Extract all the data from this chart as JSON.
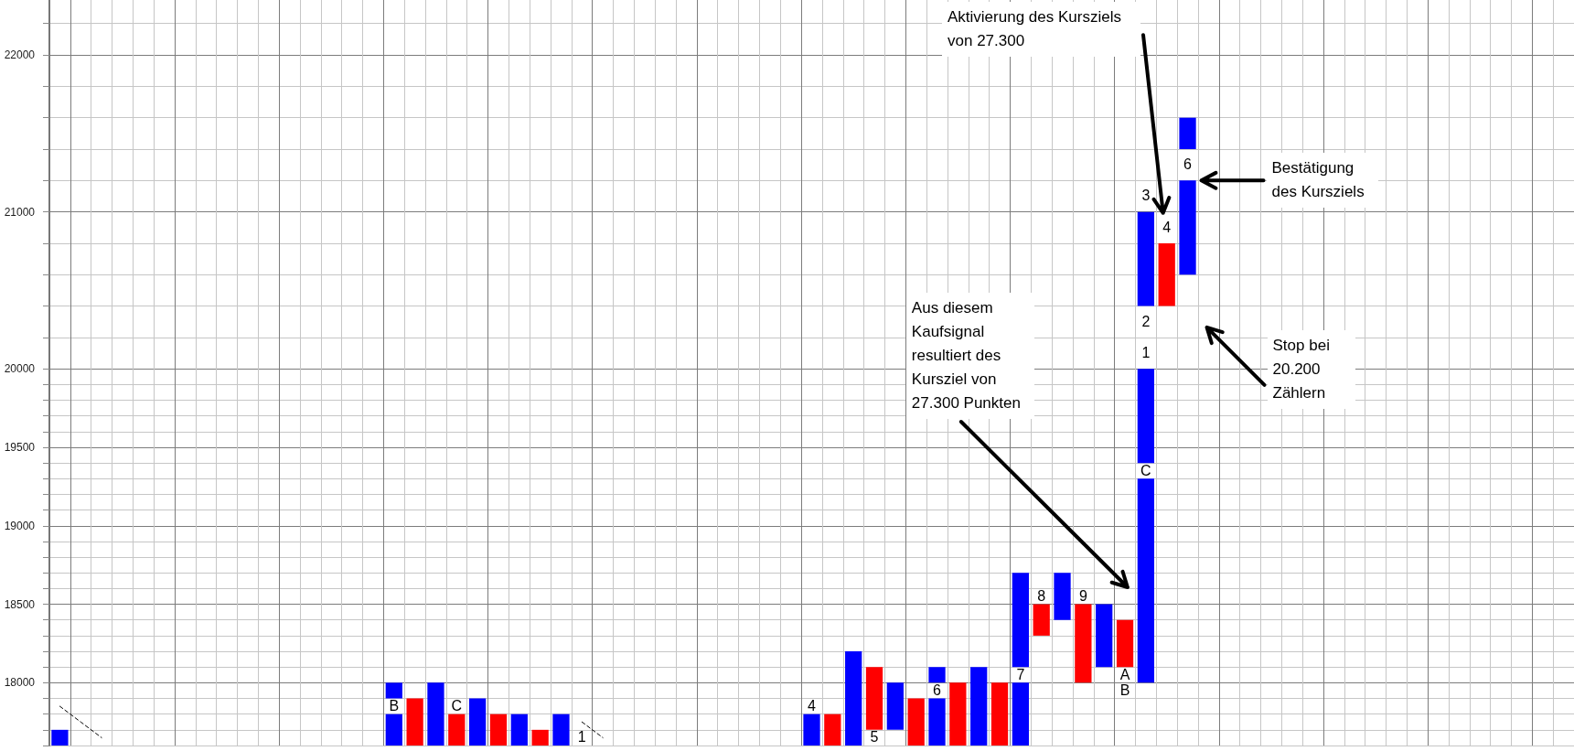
{
  "chart_data": {
    "type": "bar",
    "categories": [
      null,
      null,
      null,
      null,
      null,
      null,
      null,
      null,
      null,
      null,
      null,
      null,
      null,
      null,
      null,
      null,
      null,
      null,
      null,
      null,
      null,
      null,
      null,
      null,
      null,
      null,
      null,
      null,
      null,
      null,
      null,
      null,
      null,
      null,
      null,
      null,
      null,
      null,
      null,
      null,
      null,
      null,
      null,
      null,
      null,
      null,
      null,
      null,
      null,
      null,
      null,
      null,
      null,
      null,
      null,
      null,
      null,
      null,
      null,
      null,
      null,
      null,
      null,
      null,
      null,
      null,
      null,
      null,
      null,
      null,
      null,
      null,
      null
    ],
    "ylim": [
      17600,
      22350
    ],
    "yticks": [
      {
        "value": 17600,
        "label": null
      },
      {
        "value": 17700,
        "label": null
      },
      {
        "value": 17800,
        "label": null
      },
      {
        "value": 17900,
        "label": null
      },
      18000,
      {
        "value": 18100,
        "label": null
      },
      {
        "value": 18200,
        "label": null
      },
      {
        "value": 18300,
        "label": null
      },
      {
        "value": 18400,
        "label": null
      },
      18500,
      {
        "value": 18600,
        "label": null
      },
      {
        "value": 18700,
        "label": null
      },
      {
        "value": 18800,
        "label": null
      },
      {
        "value": 18900,
        "label": null
      },
      19000,
      {
        "value": 19100,
        "label": null
      },
      {
        "value": 19200,
        "label": null
      },
      {
        "value": 19300,
        "label": null
      },
      {
        "value": 19400,
        "label": null
      },
      19500,
      {
        "value": 19600,
        "label": null
      },
      {
        "value": 19700,
        "label": null
      },
      {
        "value": 19800,
        "label": null
      },
      {
        "value": 19900,
        "label": null
      },
      20000,
      {
        "value": 20200,
        "label": null
      },
      {
        "value": 20400,
        "label": null
      },
      {
        "value": 20600,
        "label": null
      },
      {
        "value": 20800,
        "label": null
      },
      21000,
      {
        "value": 21200,
        "label": null
      },
      {
        "value": 21400,
        "label": null
      },
      {
        "value": 21600,
        "label": null
      },
      {
        "value": 21800,
        "label": null
      },
      22000,
      {
        "value": 22200,
        "label": null
      }
    ],
    "tick_labels": "y",
    "grid": true,
    "series": [
      {
        "color": "#0000ff",
        "base": [
          17600,
          null,
          null,
          null,
          null,
          null,
          null,
          null,
          null,
          null,
          null,
          null,
          null,
          null,
          null,
          null,
          17600,
          null,
          17600,
          null,
          17600,
          null,
          17600,
          null,
          17600,
          null,
          null,
          null,
          null,
          null,
          null,
          null,
          null,
          null,
          null,
          null,
          17600,
          null,
          17600,
          null,
          17700,
          null,
          17600,
          null,
          17600,
          null,
          17600,
          null,
          18400,
          null,
          18100,
          null,
          18000,
          null,
          20600,
          null,
          null,
          null,
          null,
          null,
          null,
          null,
          null,
          null,
          null,
          null,
          null,
          null,
          null,
          null,
          null,
          null,
          null
        ],
        "values": [
          100,
          null,
          null,
          null,
          null,
          null,
          null,
          null,
          null,
          null,
          null,
          null,
          null,
          null,
          null,
          null,
          200,
          null,
          400,
          null,
          300,
          null,
          200,
          null,
          200,
          null,
          null,
          null,
          null,
          null,
          null,
          null,
          null,
          null,
          null,
          null,
          200,
          null,
          600,
          null,
          300,
          null,
          300,
          null,
          500,
          null,
          400,
          null,
          300,
          null,
          400,
          null,
          1300,
          null,
          600,
          null,
          null,
          null,
          null,
          null,
          null,
          null,
          null,
          null,
          null,
          null,
          null,
          null,
          null,
          null,
          null,
          null,
          null
        ]
      },
      {
        "color": "#0000ff",
        "base": [
          null,
          null,
          null,
          null,
          null,
          null,
          null,
          null,
          null,
          null,
          null,
          null,
          null,
          null,
          null,
          null,
          17900,
          null,
          null,
          null,
          null,
          null,
          null,
          null,
          null,
          null,
          null,
          null,
          null,
          null,
          null,
          null,
          null,
          null,
          null,
          null,
          null,
          null,
          null,
          null,
          null,
          null,
          18000,
          null,
          null,
          null,
          18100,
          null,
          null,
          null,
          null,
          null,
          19400,
          null,
          21400,
          null,
          null,
          null,
          null,
          null,
          null,
          null,
          null,
          null,
          null,
          null,
          null,
          null,
          null,
          null,
          null,
          null,
          null
        ],
        "values": [
          null,
          null,
          null,
          null,
          null,
          null,
          null,
          null,
          null,
          null,
          null,
          null,
          null,
          null,
          null,
          null,
          100,
          null,
          null,
          null,
          null,
          null,
          null,
          null,
          null,
          null,
          null,
          null,
          null,
          null,
          null,
          null,
          null,
          null,
          null,
          null,
          null,
          null,
          null,
          null,
          null,
          null,
          100,
          null,
          null,
          null,
          600,
          null,
          null,
          null,
          null,
          null,
          600,
          null,
          200,
          null,
          null,
          null,
          null,
          null,
          null,
          null,
          null,
          null,
          null,
          null,
          null,
          null,
          null,
          null,
          null,
          null,
          null
        ]
      },
      {
        "color": "#0000ff",
        "base": [
          null,
          null,
          null,
          null,
          null,
          null,
          null,
          null,
          null,
          null,
          null,
          null,
          null,
          null,
          null,
          null,
          null,
          null,
          null,
          null,
          null,
          null,
          null,
          null,
          null,
          null,
          null,
          null,
          null,
          null,
          null,
          null,
          null,
          null,
          null,
          null,
          null,
          null,
          null,
          null,
          null,
          null,
          null,
          null,
          null,
          null,
          null,
          null,
          null,
          null,
          null,
          null,
          20400,
          null,
          null,
          null,
          null,
          null,
          null,
          null,
          null,
          null,
          null,
          null,
          null,
          null,
          null,
          null,
          null,
          null,
          null,
          null,
          null
        ],
        "values": [
          null,
          null,
          null,
          null,
          null,
          null,
          null,
          null,
          null,
          null,
          null,
          null,
          null,
          null,
          null,
          null,
          null,
          null,
          null,
          null,
          null,
          null,
          null,
          null,
          null,
          null,
          null,
          null,
          null,
          null,
          null,
          null,
          null,
          null,
          null,
          null,
          null,
          null,
          null,
          null,
          null,
          null,
          null,
          null,
          null,
          null,
          null,
          null,
          null,
          null,
          null,
          null,
          600,
          null,
          null,
          null,
          null,
          null,
          null,
          null,
          null,
          null,
          null,
          null,
          null,
          null,
          null,
          null,
          null,
          null,
          null,
          null,
          null
        ]
      },
      {
        "color": "#ff0000",
        "base": [
          null,
          null,
          null,
          null,
          null,
          null,
          null,
          null,
          null,
          null,
          null,
          null,
          null,
          null,
          null,
          null,
          null,
          17600,
          null,
          17600,
          null,
          17600,
          null,
          17600,
          null,
          null,
          null,
          null,
          null,
          null,
          null,
          null,
          null,
          null,
          null,
          null,
          null,
          17600,
          null,
          17700,
          null,
          17600,
          null,
          17600,
          null,
          17600,
          null,
          18300,
          null,
          18000,
          null,
          18100,
          null,
          20400,
          null,
          null,
          null,
          null,
          null,
          null,
          null,
          null,
          null,
          null,
          null,
          null,
          null,
          null,
          null,
          null,
          null,
          null,
          null
        ],
        "values": [
          null,
          null,
          null,
          null,
          null,
          null,
          null,
          null,
          null,
          null,
          null,
          null,
          null,
          null,
          null,
          null,
          null,
          300,
          null,
          200,
          null,
          200,
          null,
          100,
          null,
          null,
          null,
          null,
          null,
          null,
          null,
          null,
          null,
          null,
          null,
          null,
          null,
          200,
          null,
          400,
          null,
          300,
          null,
          400,
          null,
          400,
          null,
          200,
          null,
          500,
          null,
          300,
          null,
          400,
          null,
          null,
          null,
          null,
          null,
          null,
          null,
          null,
          null,
          null,
          null,
          null,
          null,
          null,
          null,
          null,
          null,
          null,
          null
        ]
      },
      {
        "type": "line",
        "color": "#000000",
        "line_style": "dashed",
        "values": [
          17850,
          17750,
          17650,
          null,
          null,
          null,
          null,
          null,
          null,
          null,
          null,
          null,
          null,
          null,
          null,
          null,
          null,
          null,
          null,
          null,
          null,
          null,
          null,
          null,
          null,
          null,
          null,
          null,
          null,
          null,
          null,
          null,
          null,
          null,
          null,
          null,
          null,
          null,
          null,
          null,
          null,
          null,
          null,
          null,
          null,
          null,
          null,
          null,
          null,
          null,
          null,
          null,
          null,
          null,
          null,
          null,
          null,
          null,
          null,
          null,
          null,
          null,
          null,
          null,
          null,
          null,
          null,
          null,
          null,
          null,
          null,
          null,
          null
        ]
      },
      {
        "type": "line",
        "color": "#000000",
        "line_style": "dashed",
        "values": [
          null,
          null,
          null,
          null,
          null,
          null,
          null,
          null,
          null,
          null,
          null,
          null,
          null,
          null,
          null,
          null,
          null,
          null,
          null,
          null,
          null,
          null,
          null,
          null,
          null,
          17750,
          17650,
          null,
          null,
          null,
          null,
          null,
          null,
          null,
          null,
          null,
          null,
          null,
          null,
          null,
          null,
          null,
          null,
          null,
          null,
          null,
          null,
          null,
          null,
          null,
          null,
          null,
          null,
          null,
          null,
          null,
          null,
          null,
          null,
          null,
          null,
          null,
          null,
          null,
          null,
          null,
          null,
          null,
          null,
          null,
          null,
          null,
          null
        ]
      }
    ],
    "annotations": [
      "Aktivierung des Kursziels von 27.300",
      "Bestätigung des Kursziels",
      "Stop bei 20.200 Zählern",
      "Aus diesem Kaufsignal resultiert des Kursziel von 27.300 Punkten",
      "B",
      "C",
      "1",
      "4",
      "5",
      "6",
      "7",
      "8",
      "9",
      "A",
      "B",
      "C",
      "1",
      "2",
      "3",
      "4",
      "6"
    ]
  }
}
